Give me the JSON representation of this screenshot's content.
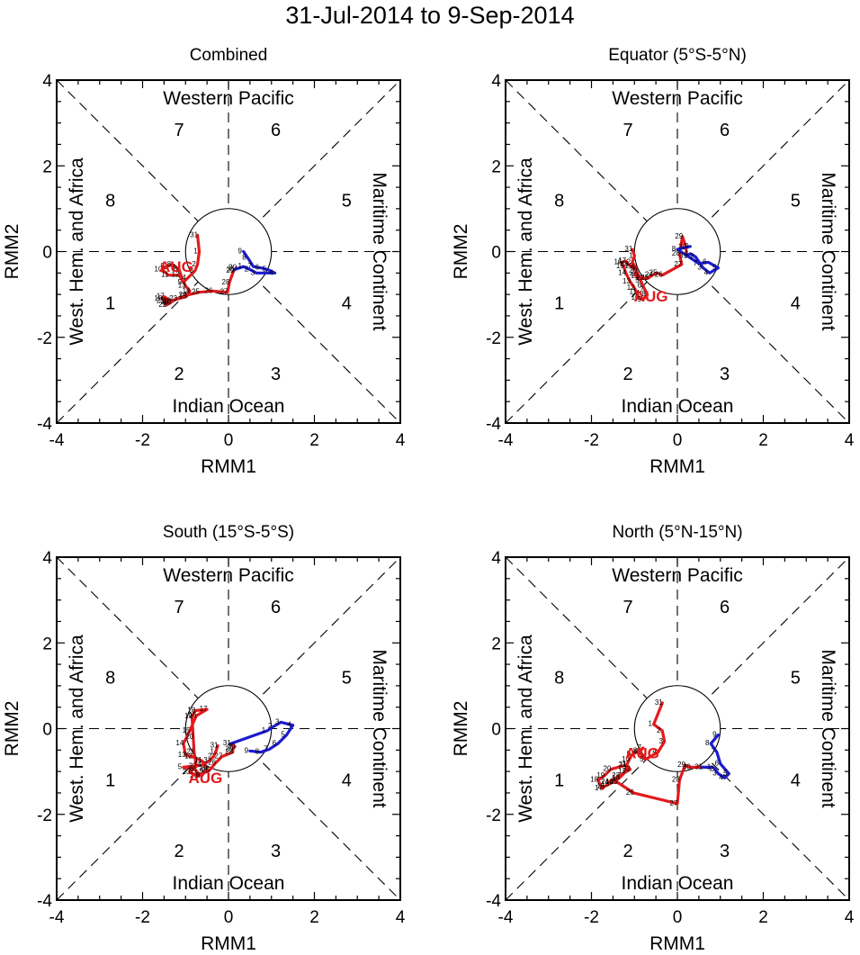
{
  "page_title": "31-Jul-2014 to 9-Sep-2014",
  "colors": {
    "august": "#e41a1c",
    "september": "#1b1bd1",
    "july": "#000000",
    "frame": "#000000"
  },
  "common": {
    "xlabel": "RMM1",
    "ylabel": "RMM2",
    "xlim": [
      -4,
      4
    ],
    "ylim": [
      -4,
      4
    ],
    "ticks": [
      "-4",
      "-2",
      "0",
      "2",
      "4"
    ],
    "tick_values": [
      -4,
      -2,
      0,
      2,
      4
    ],
    "regions": {
      "top": "Western Pacific",
      "bottom": "Indian Ocean",
      "left": "West. Hem. and Africa",
      "right": "Maritime Continent"
    },
    "phases": [
      "1",
      "2",
      "3",
      "4",
      "5",
      "6",
      "7",
      "8"
    ],
    "month_label": "AUG"
  },
  "chart_data": [
    {
      "type": "line",
      "title": "Combined",
      "series": [
        {
          "name": "Jul",
          "color": "#000000",
          "labels": [
            "31"
          ],
          "x": [
            -0.72
          ],
          "y": [
            0.38
          ]
        },
        {
          "name": "Aug",
          "color": "#e41a1c",
          "labels": [
            "1",
            "2",
            "3",
            "4",
            "5",
            "6",
            "7",
            "8",
            "9",
            "10",
            "11",
            "12",
            "13",
            "14",
            "15",
            "16",
            "17",
            "18",
            "19",
            "20",
            "21",
            "22",
            "23",
            "24",
            "25",
            "26",
            "27",
            "28",
            "29",
            "30",
            "31"
          ],
          "x": [
            -0.68,
            -0.72,
            -0.78,
            -0.95,
            -1.05,
            -1.15,
            -1.2,
            -1.3,
            -1.45,
            -1.55,
            -1.4,
            -1.15,
            -1.0,
            -0.9,
            -0.98,
            -1.35,
            -1.5,
            -1.55,
            -1.4,
            -1.35,
            -1.5,
            -1.45,
            -1.2,
            -0.98,
            -0.68,
            -0.38,
            -0.02,
            0.02,
            0.12,
            0.18,
            0.14
          ],
          "y": [
            0.0,
            -0.3,
            -0.45,
            -0.62,
            -0.72,
            -0.42,
            -0.38,
            -0.3,
            -0.35,
            -0.42,
            -0.55,
            -0.55,
            -0.8,
            -0.92,
            -1.05,
            -1.15,
            -1.05,
            -1.1,
            -1.18,
            -1.2,
            -1.15,
            -1.25,
            -1.1,
            -1.02,
            -0.95,
            -0.92,
            -0.95,
            -0.72,
            -0.45,
            -0.38,
            -0.42
          ]
        },
        {
          "name": "Sep",
          "color": "#1b1bd1",
          "labels": [
            "1",
            "2",
            "3",
            "4",
            "5",
            "6",
            "7",
            "8",
            "9"
          ],
          "x": [
            0.35,
            0.5,
            0.65,
            1.08,
            0.92,
            0.75,
            0.58,
            0.45,
            0.35
          ],
          "y": [
            -0.35,
            -0.42,
            -0.5,
            -0.5,
            -0.42,
            -0.38,
            -0.35,
            -0.15,
            0.0
          ]
        }
      ]
    },
    {
      "type": "line",
      "title": "Equator (5°S-5°N)",
      "series": [
        {
          "name": "Jul",
          "color": "#000000",
          "labels": [
            "31"
          ],
          "x": [
            -1.05
          ],
          "y": [
            0.05
          ]
        },
        {
          "name": "Aug",
          "color": "#e41a1c",
          "labels": [
            "1",
            "2",
            "3",
            "4",
            "5",
            "6",
            "7",
            "8",
            "9",
            "10",
            "11",
            "12",
            "13",
            "14",
            "15",
            "16",
            "17",
            "18",
            "19",
            "20",
            "21",
            "22",
            "23",
            "24",
            "25",
            "26",
            "27",
            "28",
            "29",
            "30",
            "31"
          ],
          "x": [
            -1.0,
            -1.05,
            -0.95,
            -0.98,
            -0.85,
            -0.8,
            -0.75,
            -0.7,
            -0.8,
            -0.9,
            -0.95,
            -1.0,
            -1.1,
            -1.2,
            -1.25,
            -1.3,
            -1.2,
            -1.15,
            -1.05,
            -0.95,
            -0.9,
            -0.78,
            -0.68,
            -0.58,
            -0.48,
            -0.35,
            0.1,
            0.05,
            0.12,
            0.2,
            0.22
          ],
          "y": [
            -0.1,
            -0.25,
            -0.4,
            -0.55,
            -0.68,
            -0.8,
            -0.9,
            -1.0,
            -1.12,
            -1.08,
            -0.95,
            -0.85,
            -0.7,
            -0.5,
            -0.35,
            -0.25,
            -0.22,
            -0.3,
            -0.35,
            -0.45,
            -0.58,
            -0.62,
            -0.62,
            -0.55,
            -0.5,
            -0.55,
            -0.3,
            -0.05,
            0.35,
            0.1,
            -0.1
          ]
        },
        {
          "name": "Sep",
          "color": "#1b1bd1",
          "labels": [
            "1",
            "2",
            "3",
            "4",
            "5",
            "6",
            "7",
            "8",
            "9"
          ],
          "x": [
            0.3,
            0.42,
            0.6,
            0.75,
            0.95,
            0.72,
            0.5,
            0.0,
            0.3
          ],
          "y": [
            -0.05,
            -0.12,
            -0.38,
            -0.5,
            -0.38,
            -0.25,
            -0.28,
            0.05,
            0.12
          ]
        }
      ]
    },
    {
      "type": "line",
      "title": "South (15°S-5°S)",
      "series": [
        {
          "name": "Jul",
          "color": "#000000",
          "labels": [
            "31"
          ],
          "x": [
            -0.25
          ],
          "y": [
            -0.4
          ]
        },
        {
          "name": "Aug",
          "color": "#e41a1c",
          "labels": [
            "1",
            "2",
            "3",
            "4",
            "5",
            "6",
            "7",
            "8",
            "9",
            "10",
            "11",
            "12",
            "13",
            "14",
            "15",
            "16",
            "17",
            "18",
            "19",
            "20",
            "21",
            "22",
            "23",
            "24",
            "25",
            "26",
            "27",
            "28",
            "29",
            "30",
            "31"
          ],
          "x": [
            -0.3,
            -0.35,
            -0.45,
            -0.6,
            -1.05,
            -0.78,
            -0.7,
            -0.62,
            -0.55,
            -0.5,
            -0.62,
            -0.85,
            -1.0,
            -1.05,
            -0.9,
            -0.75,
            -0.5,
            -0.78,
            -0.85,
            -0.82,
            -0.8,
            -0.75,
            -0.9,
            -0.72,
            -0.45,
            -0.3,
            -0.15,
            0.1,
            0.1,
            0.15,
            0.05
          ],
          "y": [
            -0.55,
            -0.65,
            -0.75,
            -0.85,
            -0.9,
            -0.95,
            -1.05,
            -1.1,
            -1.0,
            -0.92,
            -0.75,
            -0.65,
            -0.62,
            -0.35,
            -0.05,
            0.3,
            0.45,
            0.42,
            0.28,
            -0.2,
            -0.55,
            -0.88,
            -1.02,
            -1.1,
            -0.98,
            -0.8,
            -0.65,
            -0.55,
            -0.48,
            -0.42,
            -0.35
          ]
        },
        {
          "name": "Sep",
          "color": "#1b1bd1",
          "labels": [
            "1",
            "2",
            "3",
            "4",
            "5",
            "6",
            "7",
            "8",
            "9"
          ],
          "x": [
            0.9,
            1.05,
            1.22,
            1.5,
            1.35,
            1.15,
            0.95,
            0.75,
            0.5
          ],
          "y": [
            -0.05,
            0.05,
            0.15,
            0.08,
            -0.15,
            -0.35,
            -0.48,
            -0.55,
            -0.52
          ]
        }
      ]
    },
    {
      "type": "line",
      "title": "North (5°N-15°N)",
      "series": [
        {
          "name": "Jul",
          "color": "#000000",
          "labels": [
            "31"
          ],
          "x": [
            -0.35
          ],
          "y": [
            0.6
          ]
        },
        {
          "name": "Aug",
          "color": "#e41a1c",
          "labels": [
            "1",
            "2",
            "3",
            "4",
            "5",
            "6",
            "7",
            "8",
            "9",
            "10",
            "11",
            "12",
            "13",
            "14",
            "15",
            "16",
            "17",
            "18",
            "19",
            "20",
            "21",
            "22",
            "23",
            "24",
            "25",
            "26",
            "27",
            "28",
            "29",
            "30",
            "31"
          ],
          "x": [
            -0.55,
            -0.35,
            -0.3,
            -0.45,
            -0.75,
            -0.88,
            -0.8,
            -0.9,
            -1.05,
            -1.12,
            -1.18,
            -1.2,
            -1.35,
            -1.5,
            -1.6,
            -1.7,
            -1.75,
            -1.85,
            -1.7,
            -1.55,
            -1.2,
            -1.1,
            -1.35,
            -1.6,
            -1.4,
            -1.02,
            0.0,
            0.05,
            0.18,
            0.3,
            0.58
          ],
          "y": [
            0.1,
            -0.05,
            -0.3,
            -0.55,
            -0.72,
            -0.55,
            -0.45,
            -0.52,
            -0.6,
            -0.72,
            -0.85,
            -1.0,
            -1.15,
            -1.25,
            -1.3,
            -1.35,
            -1.4,
            -1.2,
            -1.1,
            -0.95,
            -0.85,
            -0.95,
            -1.1,
            -1.25,
            -1.25,
            -1.5,
            -1.75,
            -1.2,
            -0.85,
            -0.9,
            -0.9
          ]
        },
        {
          "name": "Sep",
          "color": "#1b1bd1",
          "labels": [
            "1",
            "2",
            "3",
            "4",
            "5",
            "6",
            "7",
            "8",
            "9"
          ],
          "x": [
            0.82,
            0.88,
            0.95,
            1.1,
            1.2,
            1.0,
            0.92,
            0.78,
            0.95
          ],
          "y": [
            -0.9,
            -0.95,
            -1.05,
            -1.15,
            -1.05,
            -0.82,
            -0.55,
            -0.35,
            -0.15
          ]
        }
      ]
    }
  ]
}
